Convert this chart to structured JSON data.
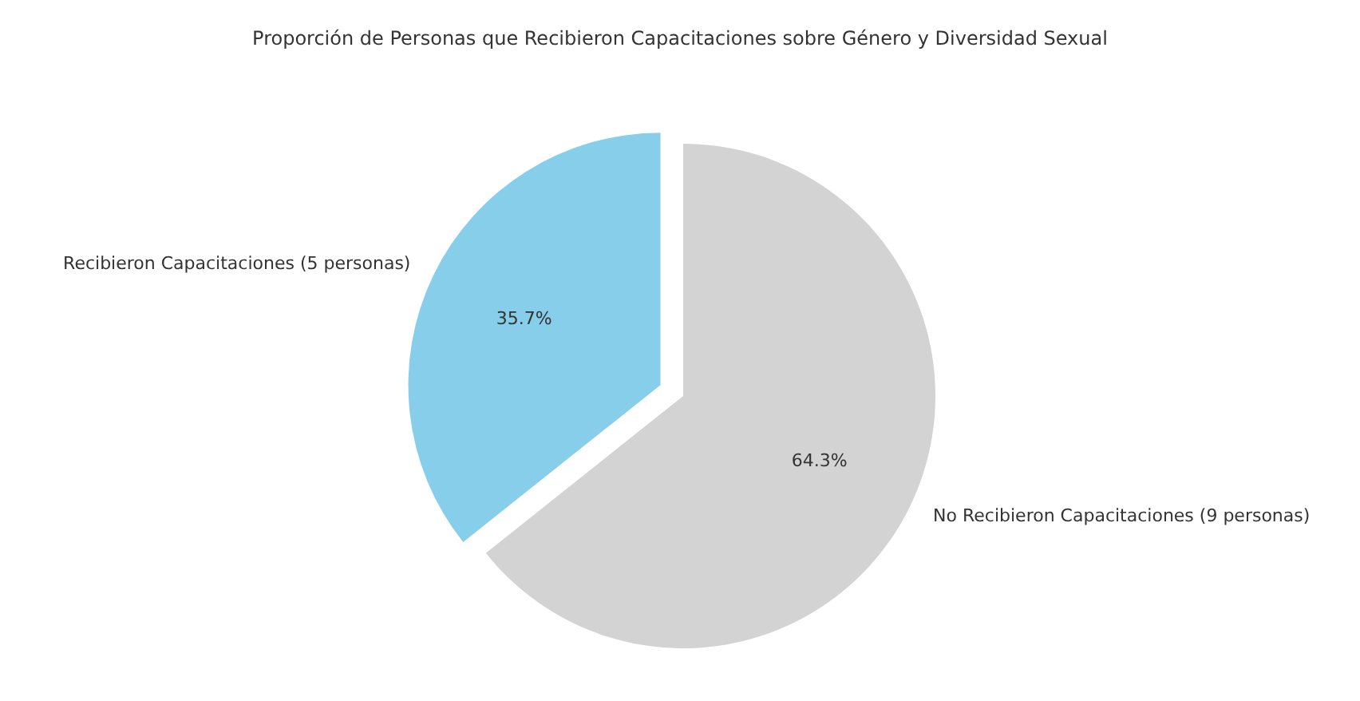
{
  "chart_data": {
    "type": "pie",
    "title": "Proporción de Personas que Recibieron Capacitaciones sobre Género y Diversidad Sexual",
    "categories": [
      "Recibieron Capacitaciones (5 personas)",
      "No Recibieron Capacitaciones (9 personas)"
    ],
    "values": [
      35.7,
      64.3
    ],
    "colors": [
      "#87ceeb",
      "#d3d3d3"
    ],
    "value_labels": [
      "35.7%",
      "64.3%"
    ]
  }
}
